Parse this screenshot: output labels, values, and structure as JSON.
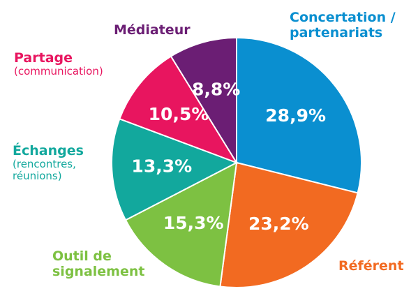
{
  "chart_data": {
    "type": "pie",
    "categories": [
      "Concertation / partenariats",
      "Référent",
      "Outil de signalement",
      "Échanges",
      "Partage",
      "Médiateur"
    ],
    "category_notes": [
      null,
      null,
      null,
      "(rencontres, réunions)",
      "(communication)",
      null
    ],
    "values": [
      28.9,
      23.2,
      15.3,
      13.3,
      10.5,
      8.8
    ],
    "value_labels": [
      "28,9%",
      "23,2%",
      "15,3%",
      "13,3%",
      "10,5%",
      "8,8%"
    ],
    "colors": [
      "#0a8fd0",
      "#f26a21",
      "#7dc142",
      "#12a89d",
      "#e8155f",
      "#6b1e74"
    ]
  }
}
